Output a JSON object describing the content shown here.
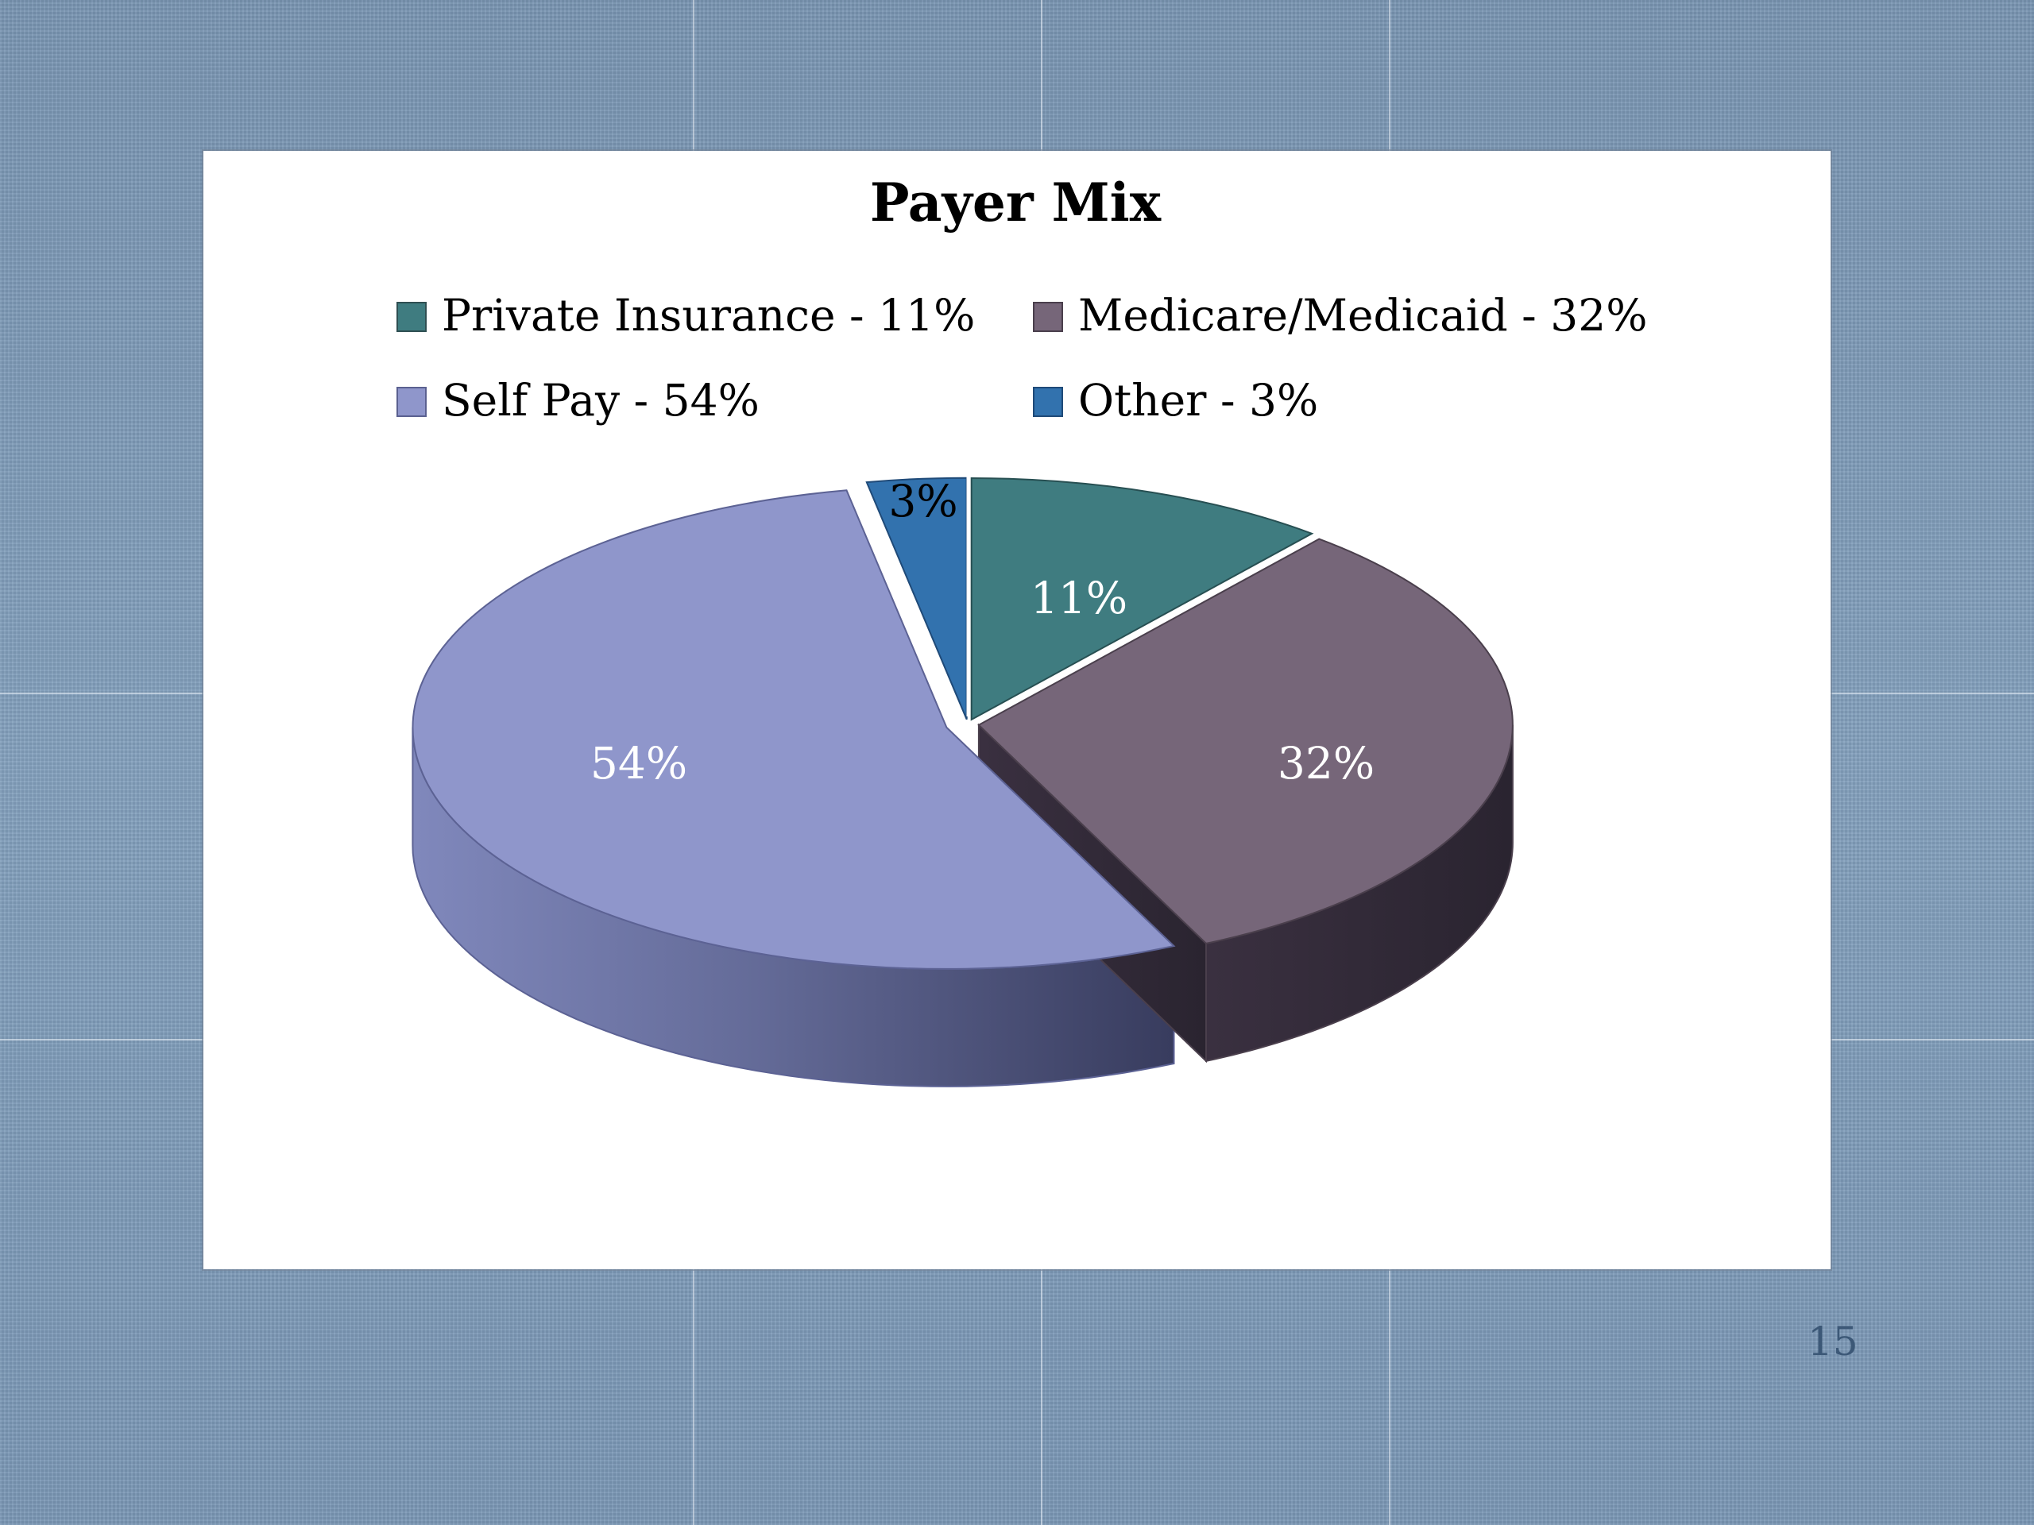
{
  "slide": {
    "page_number": "15"
  },
  "chart_data": {
    "type": "pie",
    "title": "Payer Mix",
    "legend_position": "top",
    "three_d": true,
    "slices": [
      {
        "name": "Private Insurance",
        "value": 11,
        "color": "#3f7c80",
        "legend": "Private Insurance - 11%",
        "label": "11%"
      },
      {
        "name": "Medicare/Medicaid",
        "value": 32,
        "color": "#766679",
        "legend": "Medicare/Medicaid - 32%",
        "label": "32%"
      },
      {
        "name": "Self Pay",
        "value": 54,
        "color": "#8f96cb",
        "legend": "Self Pay - 54%",
        "label": "54%"
      },
      {
        "name": "Other",
        "value": 3,
        "color": "#3272ae",
        "legend": "Other - 3%",
        "label": "3%"
      }
    ]
  }
}
